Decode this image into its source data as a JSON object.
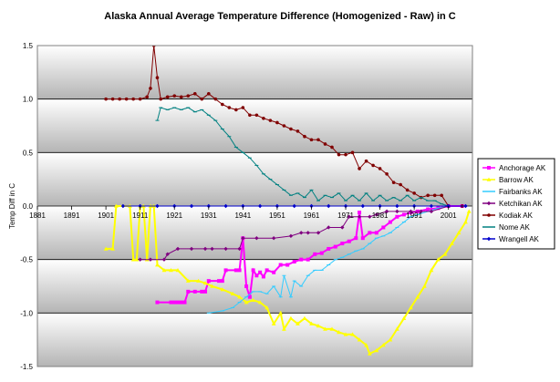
{
  "chart_data": {
    "type": "line",
    "title": "Alaska Annual Average Temperature Difference (Homogenized - Raw) in C",
    "xlabel": "",
    "ylabel": "Temp Diff in C",
    "xlim": [
      1881,
      2008
    ],
    "ylim": [
      -1.5,
      1.5
    ],
    "x_ticks": [
      "1881",
      "1891",
      "1901",
      "1911",
      "1921",
      "1931",
      "1941",
      "1951",
      "1961",
      "1971",
      "1981",
      "1991",
      "2001"
    ],
    "y_ticks": [
      "1.5",
      "1.0",
      "0.5",
      "0.0",
      "-0.5",
      "-1.0",
      "-1.5"
    ],
    "grid": true,
    "legend_position": "right",
    "series": [
      {
        "name": "Anchorage AK",
        "color": "#ff00ff",
        "marker": "square",
        "points": [
          [
            1916,
            -0.9
          ],
          [
            1920,
            -0.9
          ],
          [
            1921,
            -0.9
          ],
          [
            1922,
            -0.9
          ],
          [
            1923,
            -0.9
          ],
          [
            1924,
            -0.9
          ],
          [
            1925,
            -0.8
          ],
          [
            1927,
            -0.8
          ],
          [
            1929,
            -0.8
          ],
          [
            1930,
            -0.8
          ],
          [
            1931,
            -0.7
          ],
          [
            1934,
            -0.7
          ],
          [
            1935,
            -0.7
          ],
          [
            1936,
            -0.6
          ],
          [
            1939,
            -0.6
          ],
          [
            1940,
            -0.6
          ],
          [
            1941,
            -0.3
          ],
          [
            1942,
            -0.75
          ],
          [
            1943,
            -0.85
          ],
          [
            1944,
            -0.6
          ],
          [
            1945,
            -0.65
          ],
          [
            1946,
            -0.62
          ],
          [
            1947,
            -0.66
          ],
          [
            1948,
            -0.6
          ],
          [
            1950,
            -0.62
          ],
          [
            1952,
            -0.55
          ],
          [
            1954,
            -0.55
          ],
          [
            1956,
            -0.52
          ],
          [
            1958,
            -0.5
          ],
          [
            1960,
            -0.5
          ],
          [
            1962,
            -0.45
          ],
          [
            1964,
            -0.44
          ],
          [
            1966,
            -0.4
          ],
          [
            1968,
            -0.38
          ],
          [
            1970,
            -0.35
          ],
          [
            1972,
            -0.33
          ],
          [
            1974,
            -0.3
          ],
          [
            1975,
            -0.06
          ],
          [
            1976,
            -0.3
          ],
          [
            1978,
            -0.25
          ],
          [
            1980,
            -0.25
          ],
          [
            1982,
            -0.2
          ],
          [
            1984,
            -0.15
          ],
          [
            1986,
            -0.1
          ],
          [
            1988,
            -0.08
          ],
          [
            1990,
            -0.06
          ],
          [
            1992,
            -0.05
          ],
          [
            1995,
            -0.03
          ],
          [
            1998,
            -0.02
          ],
          [
            2001,
            0
          ],
          [
            2005,
            0
          ]
        ]
      },
      {
        "name": "Barrow AK",
        "color": "#ffff00",
        "marker": "triangle",
        "points": [
          [
            1901,
            -0.4
          ],
          [
            1903,
            -0.4
          ],
          [
            1904,
            0
          ],
          [
            1908,
            0
          ],
          [
            1909,
            -0.5
          ],
          [
            1910,
            -0.5
          ],
          [
            1911,
            0
          ],
          [
            1912,
            0
          ],
          [
            1913,
            -0.5
          ],
          [
            1914,
            0
          ],
          [
            1915,
            0
          ],
          [
            1916,
            -0.55
          ],
          [
            1918,
            -0.6
          ],
          [
            1920,
            -0.6
          ],
          [
            1922,
            -0.6
          ],
          [
            1925,
            -0.7
          ],
          [
            1928,
            -0.7
          ],
          [
            1930,
            -0.72
          ],
          [
            1932,
            -0.75
          ],
          [
            1935,
            -0.78
          ],
          [
            1938,
            -0.82
          ],
          [
            1940,
            -0.85
          ],
          [
            1942,
            -0.9
          ],
          [
            1944,
            -0.88
          ],
          [
            1946,
            -0.9
          ],
          [
            1948,
            -0.95
          ],
          [
            1950,
            -1.1
          ],
          [
            1952,
            -1.0
          ],
          [
            1953,
            -1.15
          ],
          [
            1955,
            -1.05
          ],
          [
            1957,
            -1.1
          ],
          [
            1959,
            -1.05
          ],
          [
            1961,
            -1.1
          ],
          [
            1963,
            -1.12
          ],
          [
            1965,
            -1.15
          ],
          [
            1967,
            -1.15
          ],
          [
            1969,
            -1.18
          ],
          [
            1971,
            -1.2
          ],
          [
            1973,
            -1.2
          ],
          [
            1975,
            -1.25
          ],
          [
            1977,
            -1.3
          ],
          [
            1978,
            -1.38
          ],
          [
            1980,
            -1.35
          ],
          [
            1982,
            -1.3
          ],
          [
            1984,
            -1.25
          ],
          [
            1986,
            -1.15
          ],
          [
            1988,
            -1.05
          ],
          [
            1990,
            -0.95
          ],
          [
            1992,
            -0.85
          ],
          [
            1994,
            -0.75
          ],
          [
            1996,
            -0.6
          ],
          [
            1998,
            -0.5
          ],
          [
            2000,
            -0.45
          ],
          [
            2002,
            -0.35
          ],
          [
            2004,
            -0.25
          ],
          [
            2006,
            -0.15
          ],
          [
            2007,
            -0.05
          ]
        ]
      },
      {
        "name": "Fairbanks AK",
        "color": "#33ccff",
        "marker": "line",
        "points": [
          [
            1931,
            -1.0
          ],
          [
            1935,
            -0.98
          ],
          [
            1938,
            -0.95
          ],
          [
            1940,
            -0.9
          ],
          [
            1942,
            -0.85
          ],
          [
            1944,
            -0.8
          ],
          [
            1946,
            -0.8
          ],
          [
            1948,
            -0.82
          ],
          [
            1950,
            -0.75
          ],
          [
            1952,
            -0.85
          ],
          [
            1953,
            -0.65
          ],
          [
            1955,
            -0.85
          ],
          [
            1956,
            -0.7
          ],
          [
            1958,
            -0.75
          ],
          [
            1960,
            -0.65
          ],
          [
            1962,
            -0.6
          ],
          [
            1964,
            -0.6
          ],
          [
            1966,
            -0.55
          ],
          [
            1968,
            -0.5
          ],
          [
            1970,
            -0.48
          ],
          [
            1972,
            -0.45
          ],
          [
            1974,
            -0.42
          ],
          [
            1976,
            -0.4
          ],
          [
            1978,
            -0.35
          ],
          [
            1980,
            -0.3
          ],
          [
            1982,
            -0.28
          ],
          [
            1984,
            -0.25
          ],
          [
            1986,
            -0.2
          ],
          [
            1988,
            -0.15
          ],
          [
            1990,
            -0.1
          ],
          [
            1992,
            -0.08
          ],
          [
            1995,
            -0.05
          ],
          [
            1998,
            -0.02
          ],
          [
            2001,
            0
          ],
          [
            2005,
            0
          ]
        ]
      },
      {
        "name": "Ketchikan AK",
        "color": "#800080",
        "marker": "diamond",
        "points": [
          [
            1911,
            -0.5
          ],
          [
            1914,
            -0.5
          ],
          [
            1918,
            -0.5
          ],
          [
            1919,
            -0.45
          ],
          [
            1922,
            -0.4
          ],
          [
            1926,
            -0.4
          ],
          [
            1930,
            -0.4
          ],
          [
            1932,
            -0.4
          ],
          [
            1936,
            -0.4
          ],
          [
            1940,
            -0.4
          ],
          [
            1941,
            -0.3
          ],
          [
            1945,
            -0.3
          ],
          [
            1950,
            -0.3
          ],
          [
            1955,
            -0.28
          ],
          [
            1958,
            -0.25
          ],
          [
            1960,
            -0.25
          ],
          [
            1963,
            -0.25
          ],
          [
            1966,
            -0.2
          ],
          [
            1970,
            -0.2
          ],
          [
            1972,
            -0.1
          ],
          [
            1975,
            -0.1
          ],
          [
            1978,
            -0.1
          ],
          [
            1980,
            -0.08
          ],
          [
            1983,
            -0.05
          ],
          [
            1986,
            -0.05
          ],
          [
            1990,
            -0.05
          ],
          [
            1993,
            -0.05
          ],
          [
            1996,
            -0.05
          ],
          [
            2001,
            0
          ],
          [
            2005,
            0
          ]
        ]
      },
      {
        "name": "Kodiak AK",
        "color": "#800000",
        "marker": "circle",
        "points": [
          [
            1901,
            1.0
          ],
          [
            1903,
            1.0
          ],
          [
            1905,
            1.0
          ],
          [
            1907,
            1.0
          ],
          [
            1909,
            1.0
          ],
          [
            1911,
            1.0
          ],
          [
            1913,
            1.02
          ],
          [
            1914,
            1.1
          ],
          [
            1915,
            1.5
          ],
          [
            1916,
            1.2
          ],
          [
            1917,
            1.0
          ],
          [
            1919,
            1.02
          ],
          [
            1921,
            1.03
          ],
          [
            1923,
            1.02
          ],
          [
            1925,
            1.03
          ],
          [
            1927,
            1.05
          ],
          [
            1929,
            1.0
          ],
          [
            1931,
            1.05
          ],
          [
            1933,
            1.0
          ],
          [
            1935,
            0.95
          ],
          [
            1937,
            0.92
          ],
          [
            1939,
            0.9
          ],
          [
            1941,
            0.92
          ],
          [
            1943,
            0.85
          ],
          [
            1945,
            0.85
          ],
          [
            1947,
            0.82
          ],
          [
            1949,
            0.8
          ],
          [
            1951,
            0.78
          ],
          [
            1953,
            0.75
          ],
          [
            1955,
            0.72
          ],
          [
            1957,
            0.7
          ],
          [
            1959,
            0.65
          ],
          [
            1961,
            0.62
          ],
          [
            1963,
            0.62
          ],
          [
            1965,
            0.58
          ],
          [
            1967,
            0.55
          ],
          [
            1969,
            0.48
          ],
          [
            1971,
            0.48
          ],
          [
            1973,
            0.5
          ],
          [
            1975,
            0.35
          ],
          [
            1977,
            0.42
          ],
          [
            1979,
            0.38
          ],
          [
            1981,
            0.35
          ],
          [
            1983,
            0.3
          ],
          [
            1985,
            0.22
          ],
          [
            1987,
            0.2
          ],
          [
            1989,
            0.15
          ],
          [
            1991,
            0.12
          ],
          [
            1993,
            0.08
          ],
          [
            1995,
            0.1
          ],
          [
            1997,
            0.1
          ],
          [
            1999,
            0.1
          ],
          [
            2001,
            0
          ],
          [
            2005,
            0
          ]
        ]
      },
      {
        "name": "Nome AK",
        "color": "#008080",
        "marker": "line",
        "points": [
          [
            1916,
            0.8
          ],
          [
            1917,
            0.92
          ],
          [
            1919,
            0.9
          ],
          [
            1921,
            0.92
          ],
          [
            1923,
            0.9
          ],
          [
            1925,
            0.92
          ],
          [
            1927,
            0.88
          ],
          [
            1929,
            0.9
          ],
          [
            1931,
            0.85
          ],
          [
            1933,
            0.8
          ],
          [
            1935,
            0.72
          ],
          [
            1937,
            0.65
          ],
          [
            1939,
            0.55
          ],
          [
            1941,
            0.5
          ],
          [
            1943,
            0.45
          ],
          [
            1945,
            0.38
          ],
          [
            1947,
            0.3
          ],
          [
            1949,
            0.25
          ],
          [
            1951,
            0.2
          ],
          [
            1953,
            0.15
          ],
          [
            1955,
            0.1
          ],
          [
            1957,
            0.12
          ],
          [
            1959,
            0.08
          ],
          [
            1961,
            0.15
          ],
          [
            1963,
            0.05
          ],
          [
            1965,
            0.1
          ],
          [
            1967,
            0.08
          ],
          [
            1969,
            0.12
          ],
          [
            1971,
            0.05
          ],
          [
            1973,
            0.1
          ],
          [
            1975,
            0.05
          ],
          [
            1977,
            0.12
          ],
          [
            1979,
            0.05
          ],
          [
            1981,
            0.1
          ],
          [
            1983,
            0.05
          ],
          [
            1985,
            0.08
          ],
          [
            1987,
            0.05
          ],
          [
            1989,
            0.1
          ],
          [
            1991,
            0.05
          ],
          [
            1993,
            0.08
          ],
          [
            1995,
            0.05
          ],
          [
            1997,
            0.05
          ],
          [
            1999,
            0.02
          ],
          [
            2001,
            0
          ],
          [
            2005,
            0
          ]
        ]
      },
      {
        "name": "Wrangell AK",
        "color": "#0000cc",
        "marker": "diamond",
        "points": [
          [
            1906,
            0
          ],
          [
            1911,
            0
          ],
          [
            1916,
            0
          ],
          [
            1921,
            0
          ],
          [
            1926,
            0
          ],
          [
            1931,
            0
          ],
          [
            1936,
            0
          ],
          [
            1941,
            0
          ],
          [
            1946,
            0
          ],
          [
            1951,
            0
          ],
          [
            1956,
            0
          ],
          [
            1961,
            0
          ],
          [
            1966,
            0
          ],
          [
            1971,
            0
          ],
          [
            1976,
            0
          ],
          [
            1981,
            0
          ],
          [
            1986,
            0
          ],
          [
            1991,
            0
          ],
          [
            1996,
            0
          ],
          [
            2001,
            0
          ],
          [
            2006,
            0
          ]
        ]
      }
    ]
  }
}
